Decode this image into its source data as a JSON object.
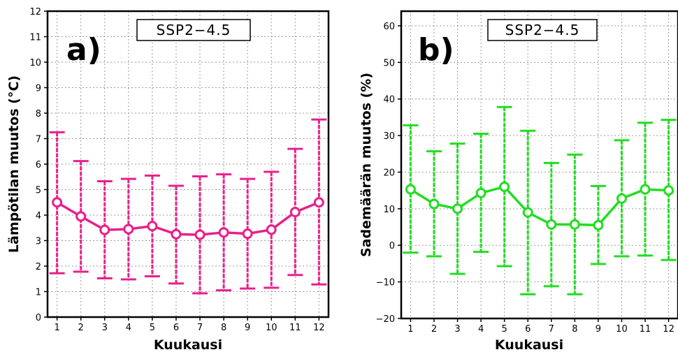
{
  "chart_data": [
    {
      "type": "line",
      "panel_label": "a)",
      "scenario_label": "SSP2−4.5",
      "xlabel": "Kuukausi",
      "ylabel": "Lämpötilan muutos (°C)",
      "x": [
        1,
        2,
        3,
        4,
        5,
        6,
        7,
        8,
        9,
        10,
        11,
        12
      ],
      "xlim": [
        0.6,
        12.4
      ],
      "ylim": [
        0,
        12
      ],
      "yticks": [
        0,
        1,
        2,
        3,
        4,
        5,
        6,
        7,
        8,
        9,
        10,
        11,
        12
      ],
      "grid": true,
      "color": "#e8208c",
      "series": [
        {
          "values": [
            4.5,
            3.95,
            3.42,
            3.45,
            3.57,
            3.25,
            3.23,
            3.32,
            3.27,
            3.43,
            4.12,
            4.5
          ],
          "lower": [
            1.72,
            1.78,
            1.52,
            1.48,
            1.6,
            1.32,
            0.93,
            1.05,
            1.12,
            1.15,
            1.65,
            1.28
          ],
          "upper": [
            7.25,
            6.12,
            5.33,
            5.42,
            5.55,
            5.15,
            5.52,
            5.6,
            5.42,
            5.7,
            6.6,
            7.75
          ]
        }
      ]
    },
    {
      "type": "line",
      "panel_label": "b)",
      "scenario_label": "SSP2−4.5",
      "xlabel": "Kuukausi",
      "ylabel": "Sademäärän muutos (%)",
      "x": [
        1,
        2,
        3,
        4,
        5,
        6,
        7,
        8,
        9,
        10,
        11,
        12
      ],
      "xlim": [
        0.6,
        12.4
      ],
      "ylim": [
        -20,
        64
      ],
      "yticks": [
        -20,
        -10,
        0,
        10,
        20,
        30,
        40,
        50,
        60
      ],
      "grid": true,
      "color": "#22dd22",
      "series": [
        {
          "values": [
            15.3,
            11.3,
            10.0,
            14.3,
            16.0,
            9.0,
            5.7,
            5.7,
            5.5,
            12.8,
            15.3,
            15.0
          ],
          "lower": [
            -2.0,
            -3.0,
            -7.8,
            -1.8,
            -5.7,
            -13.4,
            -11.2,
            -13.4,
            -5.1,
            -3.0,
            -2.8,
            -4.0
          ],
          "upper": [
            32.8,
            25.7,
            27.8,
            30.5,
            37.8,
            31.3,
            22.5,
            24.8,
            16.2,
            28.7,
            33.5,
            34.3
          ]
        }
      ]
    }
  ]
}
